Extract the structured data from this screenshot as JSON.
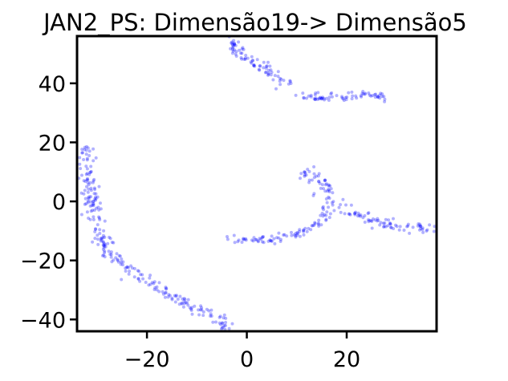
{
  "chart_data": {
    "type": "scatter",
    "title": "JAN2_PS: Dimensão19-> Dimensão5",
    "xlabel": "",
    "ylabel": "",
    "xlim": [
      -34,
      38
    ],
    "ylim": [
      -44,
      56
    ],
    "xticks": [
      -20,
      0,
      20
    ],
    "yticks": [
      -40,
      -20,
      0,
      20,
      40
    ],
    "xtick_labels": [
      "−20",
      "0",
      "20"
    ],
    "ytick_labels": [
      "−40",
      "−20",
      "0",
      "20",
      "40"
    ],
    "marker_color": "#0000ff",
    "marker_alpha": 0.3,
    "grid": false,
    "legend": "none",
    "series": [
      {
        "clusters": [
          {
            "path": [
              [
                -32,
                19
              ],
              [
                -32.5,
                13
              ],
              [
                -32,
                7
              ],
              [
                -31,
                1
              ],
              [
                -30,
                -5
              ],
              [
                -29,
                -12
              ],
              [
                -27.5,
                -17
              ],
              [
                -25,
                -21
              ],
              [
                -22,
                -25
              ],
              [
                -18,
                -29
              ],
              [
                -14,
                -33
              ],
              [
                -9,
                -37
              ],
              [
                -5,
                -41
              ],
              [
                -4,
                -43
              ]
            ],
            "n": 260,
            "jitter": 0.9
          },
          {
            "path": [
              [
                -3,
                56
              ],
              [
                -2,
                51
              ],
              [
                0,
                48
              ],
              [
                4,
                44
              ],
              [
                8,
                40
              ]
            ],
            "n": 80,
            "jitter": 0.8
          },
          {
            "path": [
              [
                9,
                36
              ],
              [
                12,
                35.5
              ],
              [
                16,
                35
              ],
              [
                20,
                35.5
              ],
              [
                24,
                36.5
              ],
              [
                28,
                35
              ]
            ],
            "n": 70,
            "jitter": 0.7
          },
          {
            "path": [
              [
                -4,
                -12
              ],
              [
                0,
                -13
              ],
              [
                5,
                -13
              ],
              [
                10,
                -11
              ],
              [
                14,
                -8
              ],
              [
                17,
                -2
              ]
            ],
            "n": 85,
            "jitter": 0.7
          },
          {
            "path": [
              [
                11,
                10
              ],
              [
                14,
                9
              ],
              [
                16,
                4
              ],
              [
                17,
                -1
              ],
              [
                20,
                -3
              ],
              [
                24,
                -6
              ],
              [
                28,
                -8
              ],
              [
                33,
                -9
              ],
              [
                38,
                -10
              ]
            ],
            "n": 130,
            "jitter": 0.9
          }
        ]
      }
    ]
  }
}
